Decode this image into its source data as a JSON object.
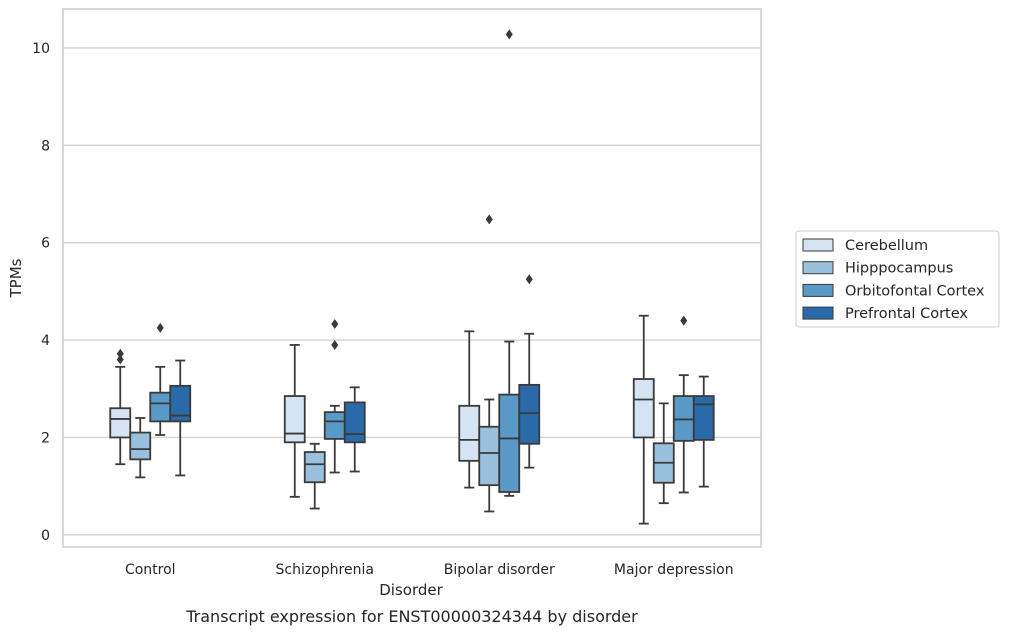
{
  "caption": "Transcript expression for ENST00000324344 by disorder",
  "chart_data": {
    "type": "box",
    "xlabel": "Disorder",
    "ylabel": "TPMs",
    "ylim": [
      -0.25,
      10.8
    ],
    "yticks": [
      0,
      2,
      4,
      6,
      8,
      10
    ],
    "grid": "horizontal",
    "legend_position": "right-outside",
    "categories": [
      "Control",
      "Schizophrenia",
      "Bipolar disorder",
      "Major depression"
    ],
    "series": [
      {
        "name": "Cerebellum",
        "color": "#d5e3f2",
        "boxes": [
          {
            "whisker_low": 1.45,
            "q1": 2.0,
            "median": 2.38,
            "q3": 2.6,
            "whisker_high": 3.45,
            "outliers": [
              3.6,
              3.72
            ]
          },
          {
            "whisker_low": 0.78,
            "q1": 1.9,
            "median": 2.08,
            "q3": 2.85,
            "whisker_high": 3.9,
            "outliers": []
          },
          {
            "whisker_low": 0.97,
            "q1": 1.52,
            "median": 1.95,
            "q3": 2.65,
            "whisker_high": 4.18,
            "outliers": []
          },
          {
            "whisker_low": 0.23,
            "q1": 2.0,
            "median": 2.78,
            "q3": 3.2,
            "whisker_high": 4.5,
            "outliers": []
          }
        ]
      },
      {
        "name": "Hipppocampus",
        "color": "#99c1de",
        "boxes": [
          {
            "whisker_low": 1.18,
            "q1": 1.55,
            "median": 1.76,
            "q3": 2.1,
            "whisker_high": 2.4,
            "outliers": []
          },
          {
            "whisker_low": 0.54,
            "q1": 1.08,
            "median": 1.45,
            "q3": 1.7,
            "whisker_high": 1.87,
            "outliers": []
          },
          {
            "whisker_low": 0.48,
            "q1": 1.02,
            "median": 1.68,
            "q3": 2.22,
            "whisker_high": 2.78,
            "outliers": [
              6.48
            ]
          },
          {
            "whisker_low": 0.65,
            "q1": 1.07,
            "median": 1.48,
            "q3": 1.88,
            "whisker_high": 2.7,
            "outliers": []
          }
        ]
      },
      {
        "name": "Orbitofontal Cortex",
        "color": "#5a9ac9",
        "boxes": [
          {
            "whisker_low": 2.05,
            "q1": 2.33,
            "median": 2.7,
            "q3": 2.92,
            "whisker_high": 3.45,
            "outliers": [
              4.25
            ]
          },
          {
            "whisker_low": 1.28,
            "q1": 1.97,
            "median": 2.33,
            "q3": 2.52,
            "whisker_high": 2.65,
            "outliers": [
              3.9,
              4.33
            ]
          },
          {
            "whisker_low": 0.8,
            "q1": 0.88,
            "median": 1.98,
            "q3": 2.88,
            "whisker_high": 3.97,
            "outliers": [
              10.28
            ]
          },
          {
            "whisker_low": 0.87,
            "q1": 1.93,
            "median": 2.37,
            "q3": 2.85,
            "whisker_high": 3.28,
            "outliers": [
              4.4
            ]
          }
        ]
      },
      {
        "name": "Prefrontal Cortex",
        "color": "#2b6aa9",
        "boxes": [
          {
            "whisker_low": 1.22,
            "q1": 2.33,
            "median": 2.45,
            "q3": 3.06,
            "whisker_high": 3.58,
            "outliers": []
          },
          {
            "whisker_low": 1.3,
            "q1": 1.9,
            "median": 2.07,
            "q3": 2.72,
            "whisker_high": 3.03,
            "outliers": []
          },
          {
            "whisker_low": 1.38,
            "q1": 1.87,
            "median": 2.5,
            "q3": 3.08,
            "whisker_high": 4.13,
            "outliers": [
              5.25
            ]
          },
          {
            "whisker_low": 0.99,
            "q1": 1.95,
            "median": 2.68,
            "q3": 2.85,
            "whisker_high": 3.25,
            "outliers": []
          }
        ]
      }
    ],
    "style": {
      "edge_color": "#3a3a3a",
      "grid_color": "#d3d3d3",
      "frame_color": "#cccccc"
    }
  }
}
